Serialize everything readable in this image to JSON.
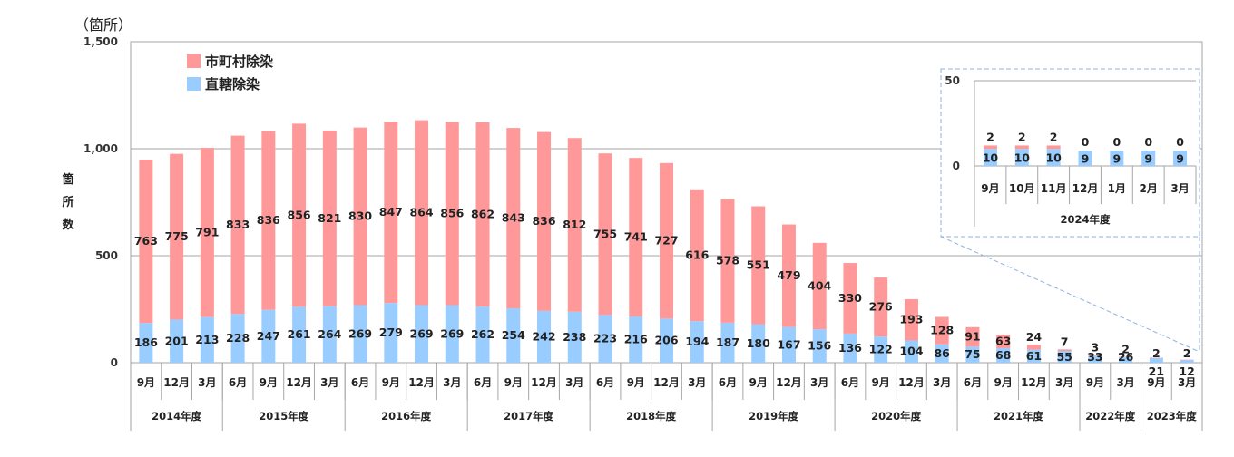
{
  "chart_data": {
    "type": "bar",
    "stacked": true,
    "unit": "（箇所）",
    "ylabel": "箇所数",
    "ylim": [
      0,
      1500
    ],
    "yticks": [
      "0",
      "500",
      "1,000",
      "1,500"
    ],
    "ytick_values": [
      0,
      500,
      1000,
      1500
    ],
    "legend": [
      "市町村除染",
      "直轄除染"
    ],
    "colors": {
      "municipal": "#ff9999",
      "direct": "#99ccff",
      "grid": "#a6a6a6",
      "inset_border": "#8db3e2"
    },
    "categories": [
      "9月",
      "12月",
      "3月",
      "6月",
      "9月",
      "12月",
      "3月",
      "6月",
      "9月",
      "12月",
      "3月",
      "6月",
      "9月",
      "12月",
      "3月",
      "6月",
      "9月",
      "12月",
      "3月",
      "6月",
      "9月",
      "12月",
      "3月",
      "6月",
      "9月",
      "12月",
      "3月",
      "6月",
      "9月",
      "12月",
      "3月",
      "9月",
      "3月",
      "9月",
      "3月"
    ],
    "groups": [
      {
        "label": "2014年度",
        "count": 3
      },
      {
        "label": "2015年度",
        "count": 4
      },
      {
        "label": "2016年度",
        "count": 4
      },
      {
        "label": "2017年度",
        "count": 4
      },
      {
        "label": "2018年度",
        "count": 4
      },
      {
        "label": "2019年度",
        "count": 4
      },
      {
        "label": "2020年度",
        "count": 4
      },
      {
        "label": "2021年度",
        "count": 4
      },
      {
        "label": "2022年度",
        "count": 2
      },
      {
        "label": "2023年度",
        "count": 2
      }
    ],
    "series": [
      {
        "name": "直轄除染",
        "values": [
          186,
          201,
          213,
          228,
          247,
          261,
          264,
          269,
          279,
          269,
          269,
          262,
          254,
          242,
          238,
          223,
          216,
          206,
          194,
          187,
          180,
          167,
          156,
          136,
          122,
          104,
          86,
          75,
          68,
          61,
          55,
          33,
          26,
          21,
          12
        ]
      },
      {
        "name": "市町村除染",
        "values": [
          763,
          775,
          791,
          833,
          836,
          856,
          821,
          830,
          847,
          864,
          856,
          862,
          843,
          836,
          812,
          755,
          741,
          727,
          616,
          578,
          551,
          479,
          404,
          330,
          276,
          193,
          128,
          91,
          63,
          24,
          7,
          3,
          2,
          2,
          2
        ]
      }
    ],
    "inset": {
      "ylim": [
        0,
        50
      ],
      "yticks": [
        "0",
        "50"
      ],
      "ytick_values": [
        0,
        50
      ],
      "categories": [
        "9月",
        "10月",
        "11月",
        "12月",
        "1月",
        "2月",
        "3月"
      ],
      "group": "2024年度",
      "series": [
        {
          "name": "直轄除染",
          "values": [
            10,
            10,
            10,
            9,
            9,
            9,
            9
          ]
        },
        {
          "name": "市町村除染",
          "values": [
            2,
            2,
            2,
            0,
            0,
            0,
            0
          ]
        }
      ]
    }
  }
}
